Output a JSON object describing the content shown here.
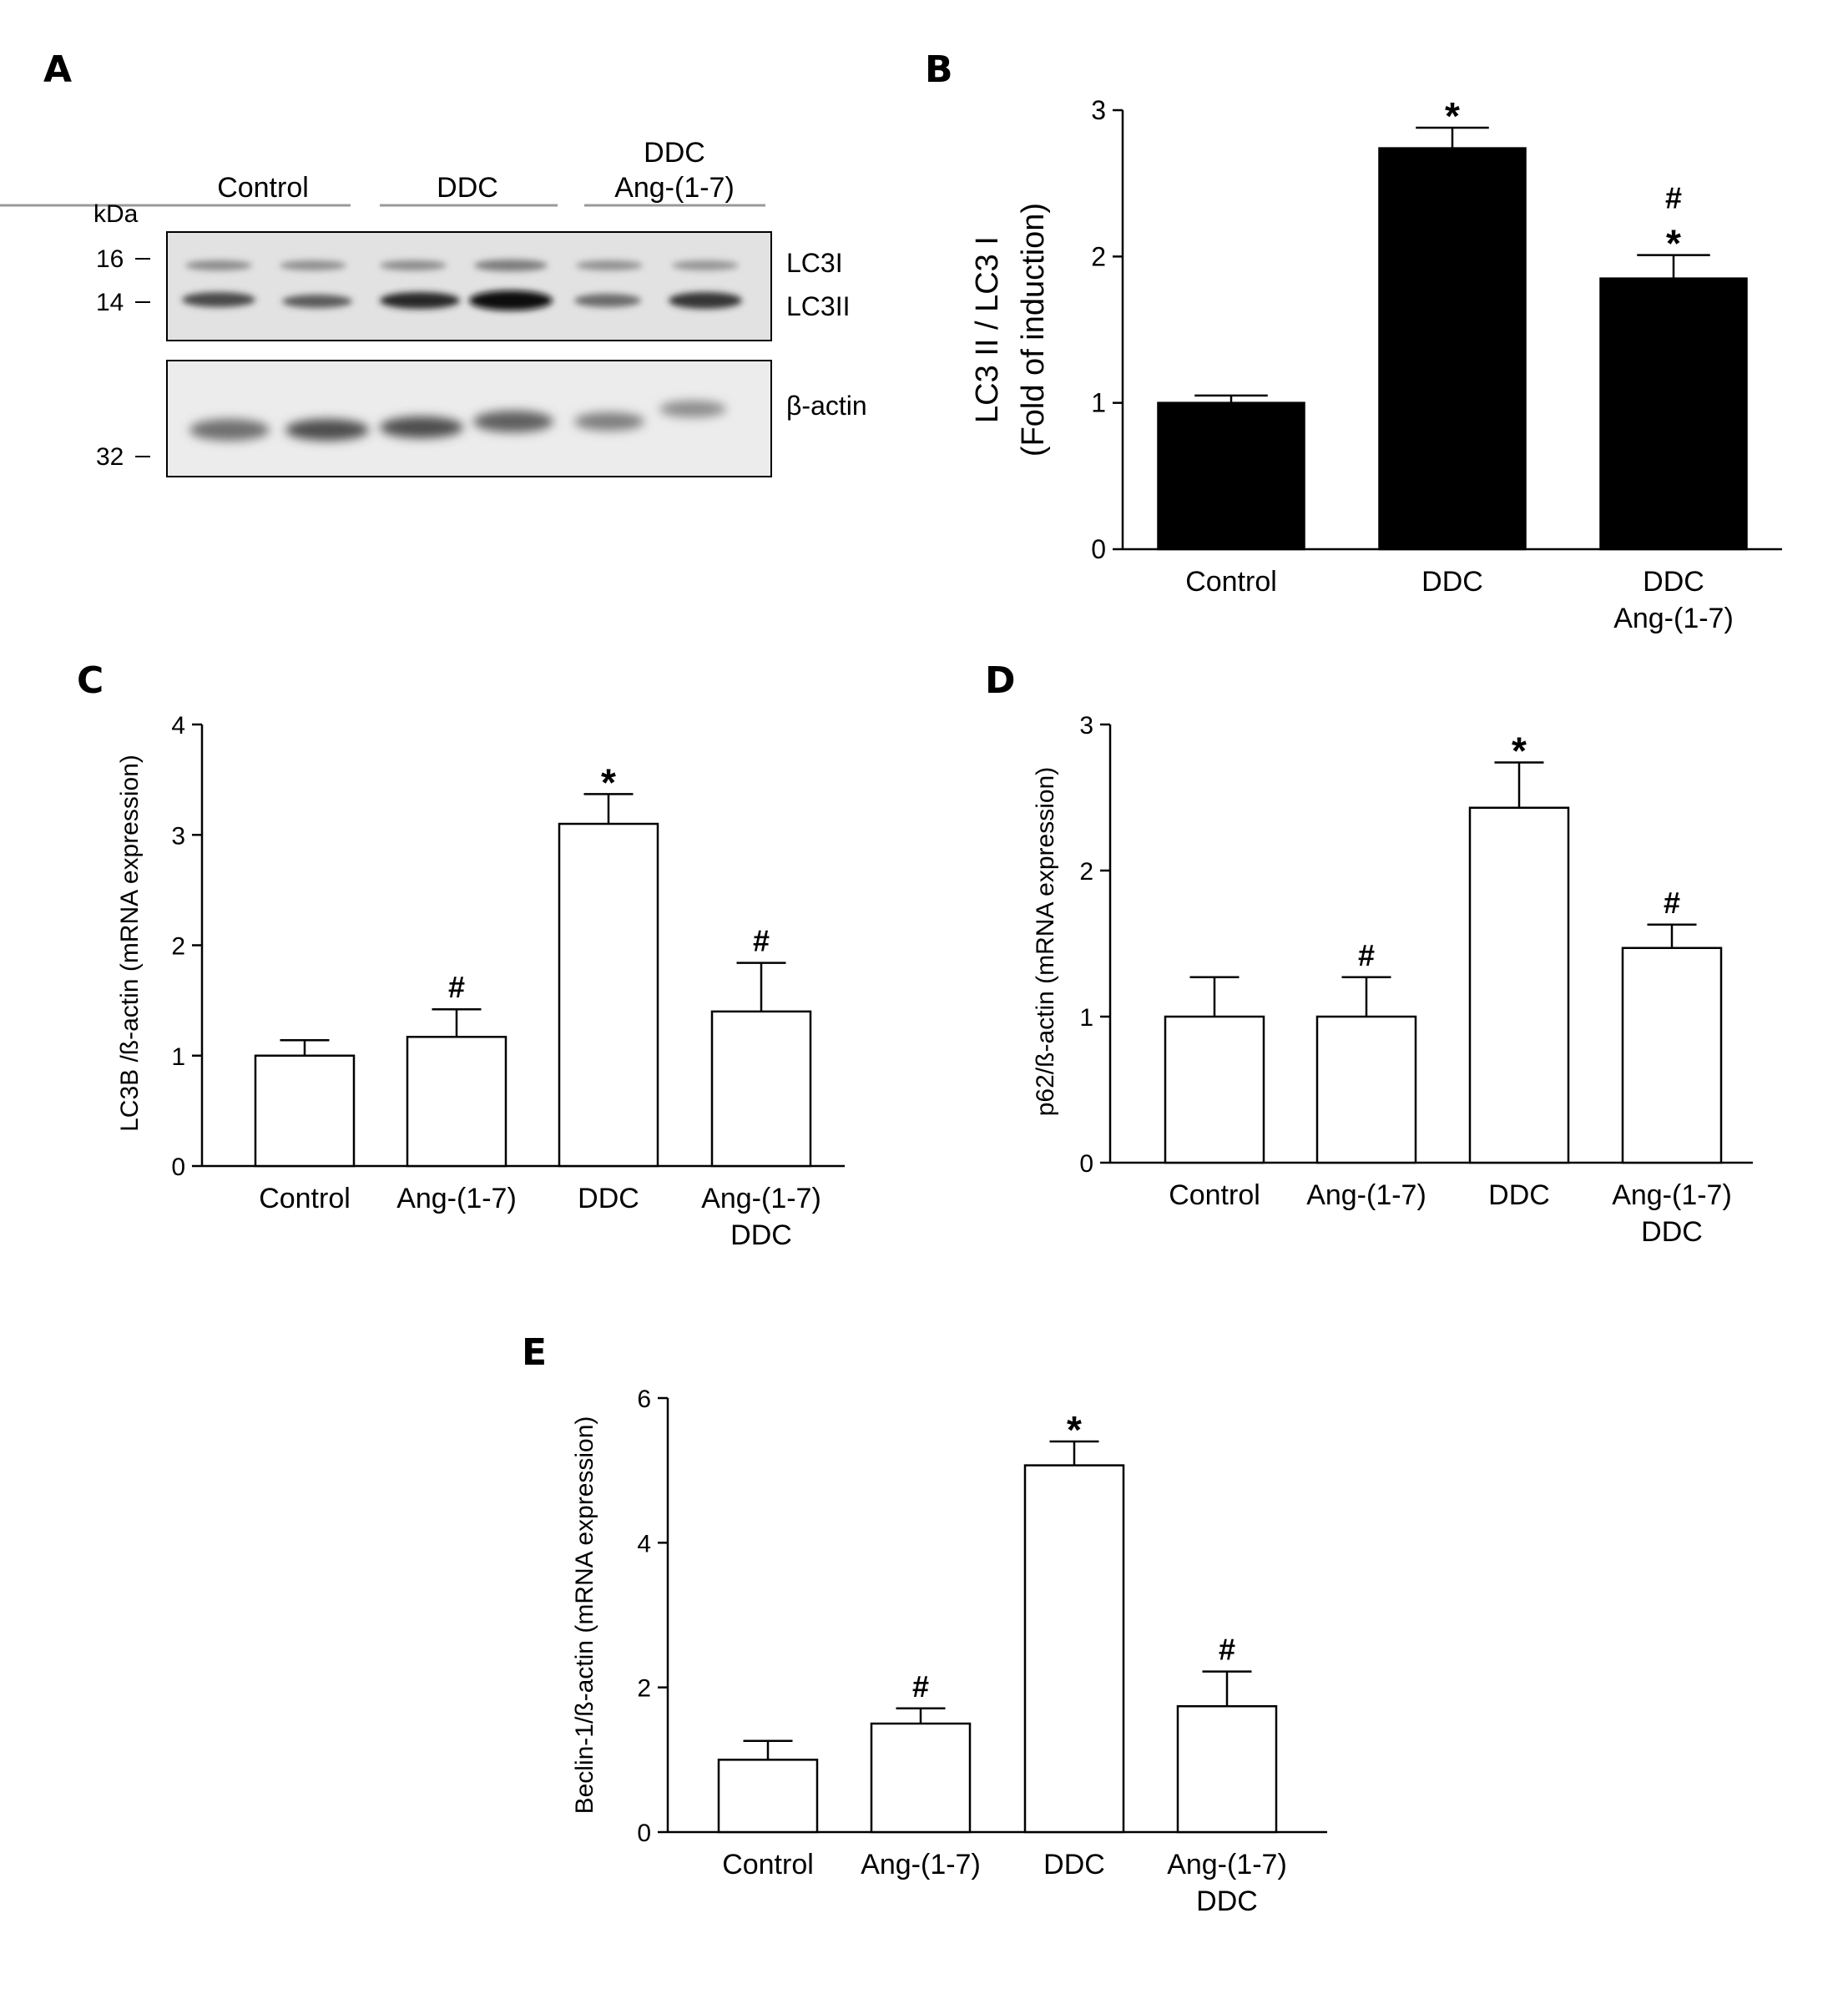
{
  "panels": {
    "A": {
      "letter": "A",
      "kda_label": "kDa",
      "lane_groups": [
        "Control",
        "DDC",
        "DDC",
        "Ang-(1-7)"
      ],
      "markers": [
        "16",
        "14",
        "32"
      ],
      "band_labels": [
        "LC3I",
        "LC3II",
        "β-actin"
      ]
    },
    "B": {
      "letter": "B"
    },
    "C": {
      "letter": "C"
    },
    "D": {
      "letter": "D"
    },
    "E": {
      "letter": "E"
    }
  },
  "chart_data": [
    {
      "id": "B",
      "type": "bar",
      "style": "filled",
      "bar_color": "#000000",
      "categories": [
        [
          "Control"
        ],
        [
          "DDC"
        ],
        [
          "DDC",
          "Ang-(1-7)"
        ]
      ],
      "values": [
        1.0,
        2.74,
        1.85
      ],
      "errors": [
        0.05,
        0.14,
        0.16
      ],
      "annotations": [
        [],
        [
          "*"
        ],
        [
          "#",
          "*"
        ]
      ],
      "ylabel": [
        "LC3 II / LC3 I",
        "(Fold of induction)"
      ],
      "ylim": [
        0,
        3
      ],
      "yticks": [
        0,
        1,
        2,
        3
      ]
    },
    {
      "id": "C",
      "type": "bar",
      "style": "open",
      "bar_color": "#ffffff",
      "categories": [
        [
          "Control"
        ],
        [
          "Ang-(1-7)"
        ],
        [
          "DDC"
        ],
        [
          "Ang-(1-7)",
          "DDC"
        ]
      ],
      "values": [
        1.0,
        1.17,
        3.1,
        1.4
      ],
      "errors": [
        0.14,
        0.25,
        0.27,
        0.44
      ],
      "annotations": [
        [],
        [
          "#"
        ],
        [
          "*"
        ],
        [
          "#"
        ]
      ],
      "ylabel": [
        "LC3B /ß-actin (mRNA expression)"
      ],
      "ylim": [
        0,
        4
      ],
      "yticks": [
        0,
        1,
        2,
        3,
        4
      ]
    },
    {
      "id": "D",
      "type": "bar",
      "style": "open",
      "bar_color": "#ffffff",
      "categories": [
        [
          "Control"
        ],
        [
          "Ang-(1-7)"
        ],
        [
          "DDC"
        ],
        [
          "Ang-(1-7)",
          "DDC"
        ]
      ],
      "values": [
        1.0,
        1.0,
        2.43,
        1.47
      ],
      "errors": [
        0.27,
        0.27,
        0.31,
        0.16
      ],
      "annotations": [
        [],
        [
          "#"
        ],
        [
          "*"
        ],
        [
          "#"
        ]
      ],
      "ylabel": [
        "p62/ß-actin (mRNA expression)"
      ],
      "ylim": [
        0,
        3
      ],
      "yticks": [
        0,
        1,
        2,
        3
      ]
    },
    {
      "id": "E",
      "type": "bar",
      "style": "open",
      "bar_color": "#ffffff",
      "categories": [
        [
          "Control"
        ],
        [
          "Ang-(1-7)"
        ],
        [
          "DDC"
        ],
        [
          "Ang-(1-7)",
          "DDC"
        ]
      ],
      "values": [
        1.0,
        1.5,
        5.07,
        1.74
      ],
      "errors": [
        0.26,
        0.21,
        0.33,
        0.48
      ],
      "annotations": [
        [],
        [
          "#"
        ],
        [
          "*"
        ],
        [
          "#"
        ]
      ],
      "ylabel": [
        "Beclin-1/ß-actin (mRNA expression)"
      ],
      "ylim": [
        0,
        6
      ],
      "yticks": [
        0,
        2,
        4,
        6
      ]
    }
  ]
}
